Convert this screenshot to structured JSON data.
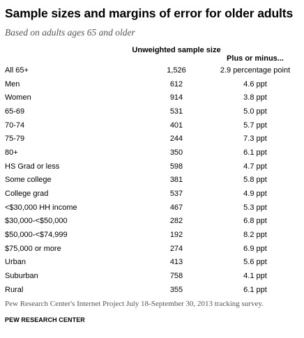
{
  "title": "Sample sizes and margins of error for older adults",
  "subtitle": "Based on adults ages 65 and older",
  "columns": {
    "sample_size": "Unweighted sample size",
    "margin": "Plus or minus..."
  },
  "rows": [
    {
      "label": "All 65+",
      "n": "1,526",
      "moe": "2.9 percentage point"
    },
    {
      "label": "Men",
      "n": "612",
      "moe": "4.6 ppt"
    },
    {
      "label": "Women",
      "n": "914",
      "moe": "3.8 ppt"
    },
    {
      "label": "65-69",
      "n": "531",
      "moe": "5.0 ppt"
    },
    {
      "label": "70-74",
      "n": "401",
      "moe": "5.7 ppt"
    },
    {
      "label": "75-79",
      "n": "244",
      "moe": "7.3 ppt"
    },
    {
      "label": "80+",
      "n": "350",
      "moe": "6.1 ppt"
    },
    {
      "label": "HS Grad or less",
      "n": "598",
      "moe": "4.7 ppt"
    },
    {
      "label": "Some college",
      "n": "381",
      "moe": "5.8 ppt"
    },
    {
      "label": "College grad",
      "n": "537",
      "moe": "4.9 ppt"
    },
    {
      "label": "<$30,000 HH income",
      "n": "467",
      "moe": "5.3 ppt"
    },
    {
      "label": "$30,000-<$50,000",
      "n": "282",
      "moe": "6.8 ppt"
    },
    {
      "label": "$50,000-<$74,999",
      "n": "192",
      "moe": "8.2 ppt"
    },
    {
      "label": "$75,000 or more",
      "n": "274",
      "moe": "6.9 ppt"
    },
    {
      "label": "Urban",
      "n": "413",
      "moe": "5.6 ppt"
    },
    {
      "label": "Suburban",
      "n": "758",
      "moe": "4.1 ppt"
    },
    {
      "label": "Rural",
      "n": "355",
      "moe": "6.1 ppt"
    }
  ],
  "footnote": "Pew Research Center's Internet Project July 18-September 30, 2013 tracking survey.",
  "brand": "PEW RESEARCH CENTER",
  "colors": {
    "rule": "#c8c8c8",
    "subtitle": "#555555"
  }
}
